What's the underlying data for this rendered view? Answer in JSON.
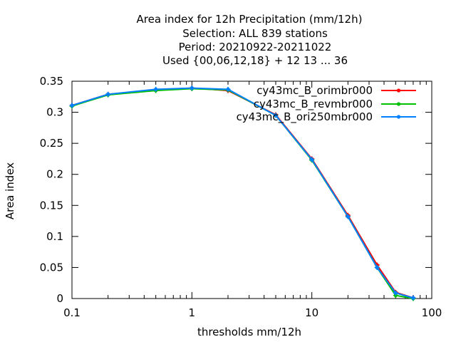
{
  "chart_data": {
    "type": "line",
    "title_lines": [
      "Area index  for 12h Precipitation (mm/12h)",
      "Selection: ALL    839 stations",
      "Period: 20210922-20211022",
      "Used {00,06,12,18} + 12 13 ... 36"
    ],
    "xlabel": "thresholds mm/12h",
    "ylabel": "Area index",
    "xscale": "log",
    "xlim": [
      0.1,
      100
    ],
    "ylim": [
      0,
      0.35
    ],
    "xticks": [
      0.1,
      1,
      10,
      100
    ],
    "xtick_labels": [
      "0.1",
      "1",
      "10",
      "100"
    ],
    "yticks": [
      0,
      0.05,
      0.1,
      0.15,
      0.2,
      0.25,
      0.3,
      0.35
    ],
    "ytick_labels": [
      "0",
      "0.05",
      "0.1",
      "0.15",
      "0.2",
      "0.25",
      "0.3",
      "0.35"
    ],
    "legend_position": "top-right",
    "grid": false,
    "x": [
      0.1,
      0.2,
      0.5,
      1,
      2,
      5,
      10,
      20,
      35,
      50,
      70
    ],
    "series": [
      {
        "name": "cy43mc_B_orimbr000",
        "color": "#ff0000",
        "values": [
          0.311,
          0.329,
          0.336,
          0.339,
          0.335,
          0.296,
          0.225,
          0.134,
          0.054,
          0.01,
          0.001
        ]
      },
      {
        "name": "cy43mc_B_revmbr000",
        "color": "#00c000",
        "values": [
          0.31,
          0.328,
          0.335,
          0.338,
          0.336,
          0.295,
          0.223,
          0.132,
          0.05,
          0.005,
          0.0
        ]
      },
      {
        "name": "cy43mc_B_ori250mbr000",
        "color": "#0080ff",
        "values": [
          0.311,
          0.329,
          0.337,
          0.339,
          0.337,
          0.295,
          0.224,
          0.132,
          0.05,
          0.009,
          0.001
        ]
      }
    ]
  }
}
